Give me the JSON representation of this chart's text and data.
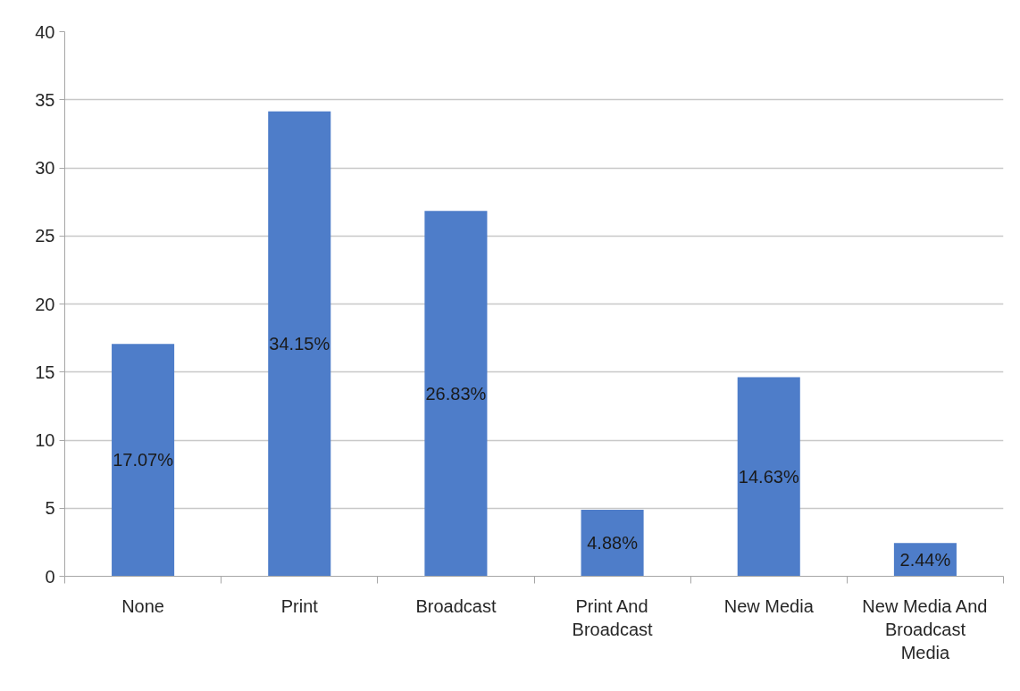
{
  "chart_data": {
    "type": "bar",
    "categories": [
      "None",
      "Print",
      "Broadcast",
      "Print And Broadcast",
      "New Media",
      "New Media And Broadcast Media"
    ],
    "values": [
      17.07,
      34.15,
      26.83,
      4.88,
      14.63,
      2.44
    ],
    "value_labels": [
      "17.07%",
      "34.15%",
      "26.83%",
      "4.88%",
      "14.63%",
      "2.44%"
    ],
    "color": "#4e7dc9",
    "ylim": [
      0,
      40
    ],
    "yticks": [
      0,
      5,
      10,
      15,
      20,
      25,
      30,
      35,
      40
    ],
    "grid": "y"
  }
}
